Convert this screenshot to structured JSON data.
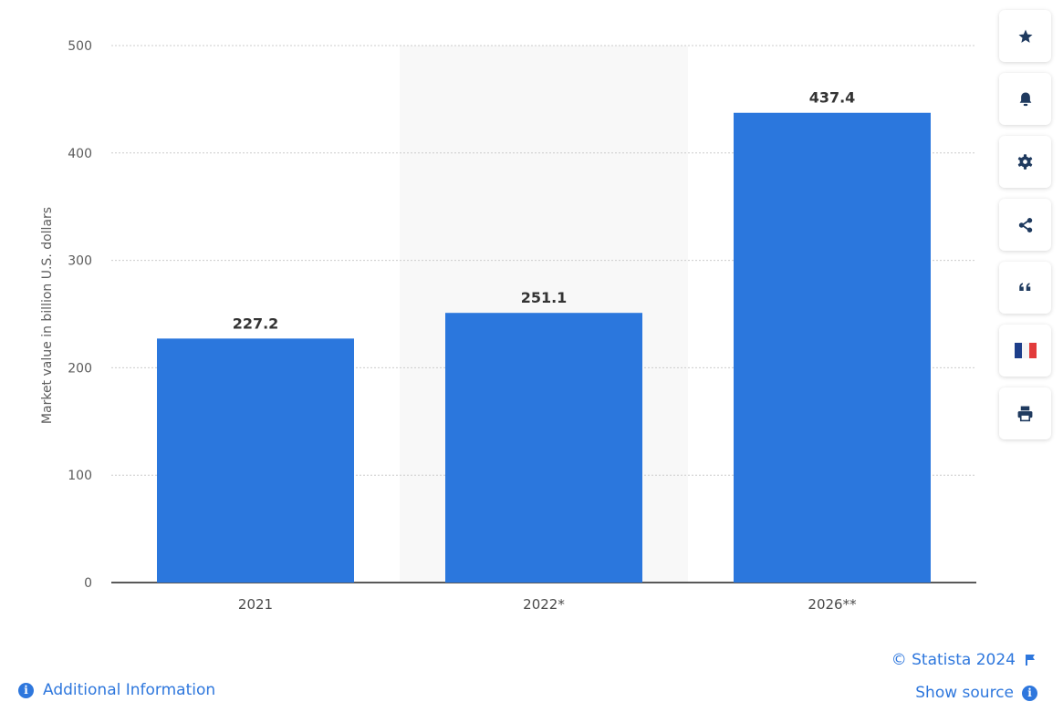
{
  "chart_data": {
    "type": "bar",
    "title": "",
    "xlabel": "",
    "ylabel": "Market value in billion U.S. dollars",
    "categories": [
      "2021",
      "2022*",
      "2026**"
    ],
    "values": [
      227.2,
      251.1,
      437.4
    ],
    "value_labels": [
      "227.2",
      "251.1",
      "437.4"
    ],
    "ylim": [
      0,
      500
    ],
    "yticks": [
      "0",
      "100",
      "200",
      "300",
      "400",
      "500"
    ],
    "ytick_values": [
      0,
      100,
      200,
      300,
      400,
      500
    ],
    "grid": true,
    "highlighted_category": "2022*",
    "colors": {
      "bar": "#2b77dd",
      "highlight_band": "#f8f8f8",
      "grid": "#cccccc",
      "axis": "#222222"
    }
  },
  "toolbar": {
    "buttons": [
      {
        "name": "favorite",
        "icon": "star-icon"
      },
      {
        "name": "notification",
        "icon": "bell-icon"
      },
      {
        "name": "settings",
        "icon": "gear-icon"
      },
      {
        "name": "share",
        "icon": "share-icon"
      },
      {
        "name": "cite",
        "icon": "quote-icon"
      },
      {
        "name": "language",
        "icon": "french-flag-icon"
      },
      {
        "name": "print",
        "icon": "printer-icon"
      }
    ]
  },
  "footer": {
    "additional_info": "Additional Information",
    "copyright": "© Statista 2024",
    "show_source": "Show source",
    "link_color": "#2e77dd"
  }
}
